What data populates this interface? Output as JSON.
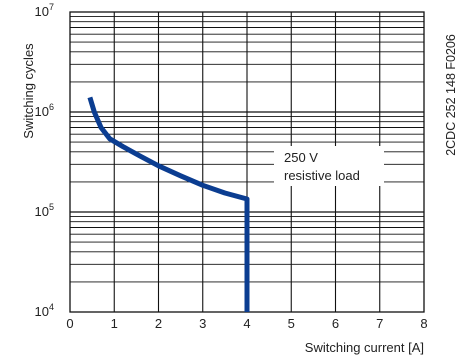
{
  "chart_data": {
    "type": "line",
    "xlabel": "Switching current [A]",
    "ylabel": "Switching cycles",
    "xlim": [
      0,
      8
    ],
    "ylim": [
      10000,
      10000000
    ],
    "y_scale": "log",
    "grid": true,
    "x_ticks": [
      "0",
      "1",
      "2",
      "3",
      "4",
      "5",
      "6",
      "7",
      "8"
    ],
    "y_ticks": [
      {
        "base": "10",
        "exp": "4"
      },
      {
        "base": "10",
        "exp": "5"
      },
      {
        "base": "10",
        "exp": "6"
      },
      {
        "base": "10",
        "exp": "7"
      }
    ],
    "annotation": {
      "line1": "250 V",
      "line2": "resistive load"
    },
    "series": [
      {
        "color": "#0b3d91",
        "points": [
          {
            "x": 0.45,
            "y": 1400000
          },
          {
            "x": 0.55,
            "y": 1000000
          },
          {
            "x": 0.7,
            "y": 700000
          },
          {
            "x": 0.9,
            "y": 540000
          },
          {
            "x": 1.2,
            "y": 450000
          },
          {
            "x": 1.6,
            "y": 360000
          },
          {
            "x": 2.0,
            "y": 290000
          },
          {
            "x": 2.5,
            "y": 230000
          },
          {
            "x": 3.0,
            "y": 185000
          },
          {
            "x": 3.5,
            "y": 155000
          },
          {
            "x": 4.0,
            "y": 135000
          },
          {
            "x": 4.0,
            "y": 10000
          }
        ]
      }
    ]
  },
  "figure_id": "2CDC 252 148 F0206"
}
